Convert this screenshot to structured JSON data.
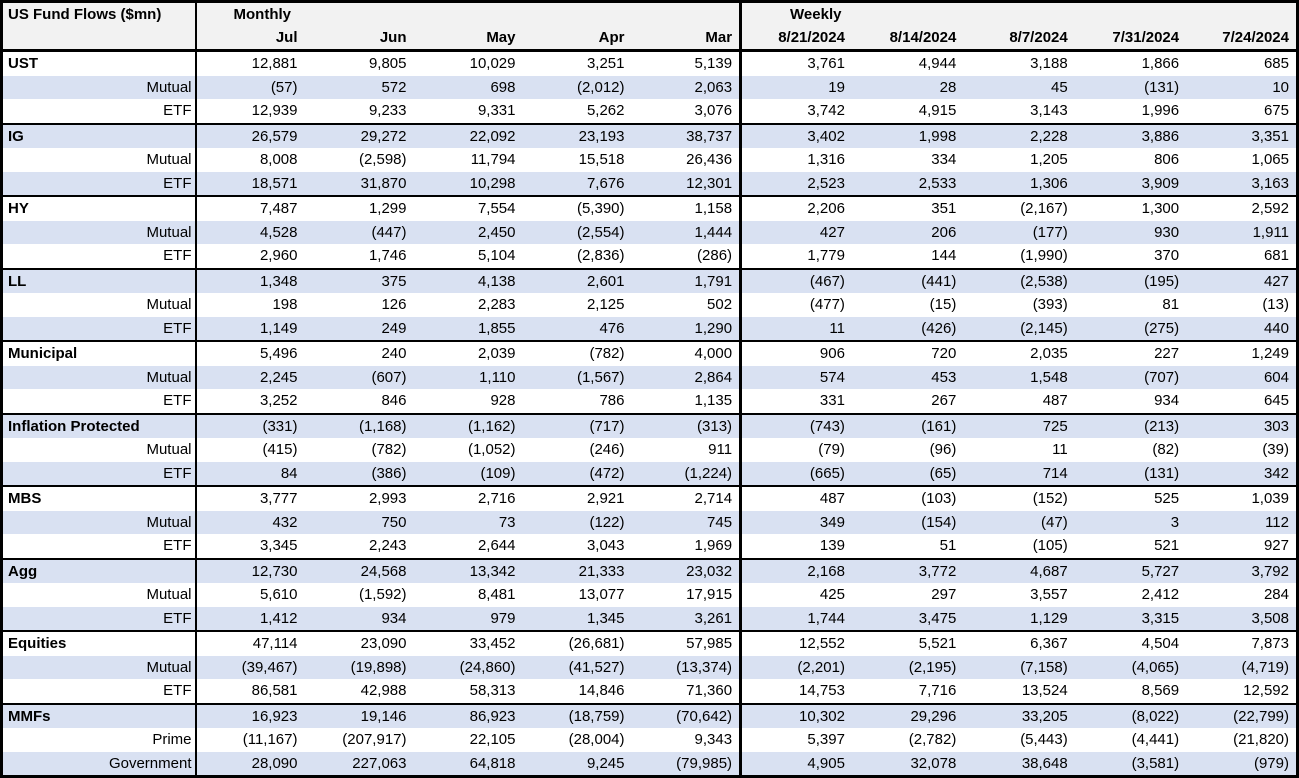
{
  "colors": {
    "stripe_row": "#d9e1f2",
    "header_bg": "#f2f2f2",
    "border": "#000000",
    "text": "#000000",
    "row_bg": "#ffffff"
  },
  "chart_data": {
    "type": "table",
    "title": "US Fund Flows ($mn)",
    "column_groups": [
      {
        "label": "Monthly",
        "columns": [
          "Jul",
          "Jun",
          "May",
          "Apr",
          "Mar"
        ]
      },
      {
        "label": "Weekly",
        "columns": [
          "8/21/2024",
          "8/14/2024",
          "8/7/2024",
          "7/31/2024",
          "7/24/2024"
        ]
      }
    ],
    "sections": [
      {
        "name": "UST",
        "rows": [
          {
            "label": "UST",
            "monthly": [
              "12,881",
              "9,805",
              "10,029",
              "3,251",
              "5,139"
            ],
            "weekly": [
              "3,761",
              "4,944",
              "3,188",
              "1,866",
              "685"
            ]
          },
          {
            "label": "Mutual",
            "monthly": [
              "(57)",
              "572",
              "698",
              "(2,012)",
              "2,063"
            ],
            "weekly": [
              "19",
              "28",
              "45",
              "(131)",
              "10"
            ]
          },
          {
            "label": "ETF",
            "monthly": [
              "12,939",
              "9,233",
              "9,331",
              "5,262",
              "3,076"
            ],
            "weekly": [
              "3,742",
              "4,915",
              "3,143",
              "1,996",
              "675"
            ]
          }
        ]
      },
      {
        "name": "IG",
        "rows": [
          {
            "label": "IG",
            "monthly": [
              "26,579",
              "29,272",
              "22,092",
              "23,193",
              "38,737"
            ],
            "weekly": [
              "3,402",
              "1,998",
              "2,228",
              "3,886",
              "3,351"
            ]
          },
          {
            "label": "Mutual",
            "monthly": [
              "8,008",
              "(2,598)",
              "11,794",
              "15,518",
              "26,436"
            ],
            "weekly": [
              "1,316",
              "334",
              "1,205",
              "806",
              "1,065"
            ]
          },
          {
            "label": "ETF",
            "monthly": [
              "18,571",
              "31,870",
              "10,298",
              "7,676",
              "12,301"
            ],
            "weekly": [
              "2,523",
              "2,533",
              "1,306",
              "3,909",
              "3,163"
            ]
          }
        ]
      },
      {
        "name": "HY",
        "rows": [
          {
            "label": "HY",
            "monthly": [
              "7,487",
              "1,299",
              "7,554",
              "(5,390)",
              "1,158"
            ],
            "weekly": [
              "2,206",
              "351",
              "(2,167)",
              "1,300",
              "2,592"
            ]
          },
          {
            "label": "Mutual",
            "monthly": [
              "4,528",
              "(447)",
              "2,450",
              "(2,554)",
              "1,444"
            ],
            "weekly": [
              "427",
              "206",
              "(177)",
              "930",
              "1,911"
            ]
          },
          {
            "label": "ETF",
            "monthly": [
              "2,960",
              "1,746",
              "5,104",
              "(2,836)",
              "(286)"
            ],
            "weekly": [
              "1,779",
              "144",
              "(1,990)",
              "370",
              "681"
            ]
          }
        ]
      },
      {
        "name": "LL",
        "rows": [
          {
            "label": "LL",
            "monthly": [
              "1,348",
              "375",
              "4,138",
              "2,601",
              "1,791"
            ],
            "weekly": [
              "(467)",
              "(441)",
              "(2,538)",
              "(195)",
              "427"
            ]
          },
          {
            "label": "Mutual",
            "monthly": [
              "198",
              "126",
              "2,283",
              "2,125",
              "502"
            ],
            "weekly": [
              "(477)",
              "(15)",
              "(393)",
              "81",
              "(13)"
            ]
          },
          {
            "label": "ETF",
            "monthly": [
              "1,149",
              "249",
              "1,855",
              "476",
              "1,290"
            ],
            "weekly": [
              "11",
              "(426)",
              "(2,145)",
              "(275)",
              "440"
            ]
          }
        ]
      },
      {
        "name": "Municipal",
        "rows": [
          {
            "label": "Municipal",
            "monthly": [
              "5,496",
              "240",
              "2,039",
              "(782)",
              "4,000"
            ],
            "weekly": [
              "906",
              "720",
              "2,035",
              "227",
              "1,249"
            ]
          },
          {
            "label": "Mutual",
            "monthly": [
              "2,245",
              "(607)",
              "1,110",
              "(1,567)",
              "2,864"
            ],
            "weekly": [
              "574",
              "453",
              "1,548",
              "(707)",
              "604"
            ]
          },
          {
            "label": "ETF",
            "monthly": [
              "3,252",
              "846",
              "928",
              "786",
              "1,135"
            ],
            "weekly": [
              "331",
              "267",
              "487",
              "934",
              "645"
            ]
          }
        ]
      },
      {
        "name": "Inflation Protected",
        "rows": [
          {
            "label": "Inflation Protected",
            "monthly": [
              "(331)",
              "(1,168)",
              "(1,162)",
              "(717)",
              "(313)"
            ],
            "weekly": [
              "(743)",
              "(161)",
              "725",
              "(213)",
              "303"
            ]
          },
          {
            "label": "Mutual",
            "monthly": [
              "(415)",
              "(782)",
              "(1,052)",
              "(246)",
              "911"
            ],
            "weekly": [
              "(79)",
              "(96)",
              "11",
              "(82)",
              "(39)"
            ]
          },
          {
            "label": "ETF",
            "monthly": [
              "84",
              "(386)",
              "(109)",
              "(472)",
              "(1,224)"
            ],
            "weekly": [
              "(665)",
              "(65)",
              "714",
              "(131)",
              "342"
            ]
          }
        ]
      },
      {
        "name": "MBS",
        "rows": [
          {
            "label": "MBS",
            "monthly": [
              "3,777",
              "2,993",
              "2,716",
              "2,921",
              "2,714"
            ],
            "weekly": [
              "487",
              "(103)",
              "(152)",
              "525",
              "1,039"
            ]
          },
          {
            "label": "Mutual",
            "monthly": [
              "432",
              "750",
              "73",
              "(122)",
              "745"
            ],
            "weekly": [
              "349",
              "(154)",
              "(47)",
              "3",
              "112"
            ]
          },
          {
            "label": "ETF",
            "monthly": [
              "3,345",
              "2,243",
              "2,644",
              "3,043",
              "1,969"
            ],
            "weekly": [
              "139",
              "51",
              "(105)",
              "521",
              "927"
            ]
          }
        ]
      },
      {
        "name": "Agg",
        "rows": [
          {
            "label": "Agg",
            "monthly": [
              "12,730",
              "24,568",
              "13,342",
              "21,333",
              "23,032"
            ],
            "weekly": [
              "2,168",
              "3,772",
              "4,687",
              "5,727",
              "3,792"
            ]
          },
          {
            "label": "Mutual",
            "monthly": [
              "5,610",
              "(1,592)",
              "8,481",
              "13,077",
              "17,915"
            ],
            "weekly": [
              "425",
              "297",
              "3,557",
              "2,412",
              "284"
            ]
          },
          {
            "label": "ETF",
            "monthly": [
              "1,412",
              "934",
              "979",
              "1,345",
              "3,261"
            ],
            "weekly": [
              "1,744",
              "3,475",
              "1,129",
              "3,315",
              "3,508"
            ]
          }
        ]
      },
      {
        "name": "Equities",
        "rows": [
          {
            "label": "Equities",
            "monthly": [
              "47,114",
              "23,090",
              "33,452",
              "(26,681)",
              "57,985"
            ],
            "weekly": [
              "12,552",
              "5,521",
              "6,367",
              "4,504",
              "7,873"
            ]
          },
          {
            "label": "Mutual",
            "monthly": [
              "(39,467)",
              "(19,898)",
              "(24,860)",
              "(41,527)",
              "(13,374)"
            ],
            "weekly": [
              "(2,201)",
              "(2,195)",
              "(7,158)",
              "(4,065)",
              "(4,719)"
            ]
          },
          {
            "label": "ETF",
            "monthly": [
              "86,581",
              "42,988",
              "58,313",
              "14,846",
              "71,360"
            ],
            "weekly": [
              "14,753",
              "7,716",
              "13,524",
              "8,569",
              "12,592"
            ]
          }
        ]
      },
      {
        "name": "MMFs",
        "rows": [
          {
            "label": "MMFs",
            "monthly": [
              "16,923",
              "19,146",
              "86,923",
              "(18,759)",
              "(70,642)"
            ],
            "weekly": [
              "10,302",
              "29,296",
              "33,205",
              "(8,022)",
              "(22,799)"
            ]
          },
          {
            "label": "Prime",
            "monthly": [
              "(11,167)",
              "(207,917)",
              "22,105",
              "(28,004)",
              "9,343"
            ],
            "weekly": [
              "5,397",
              "(2,782)",
              "(5,443)",
              "(4,441)",
              "(21,820)"
            ]
          },
          {
            "label": "Government",
            "monthly": [
              "28,090",
              "227,063",
              "64,818",
              "9,245",
              "(79,985)"
            ],
            "weekly": [
              "4,905",
              "32,078",
              "38,648",
              "(3,581)",
              "(979)"
            ]
          }
        ]
      }
    ]
  }
}
